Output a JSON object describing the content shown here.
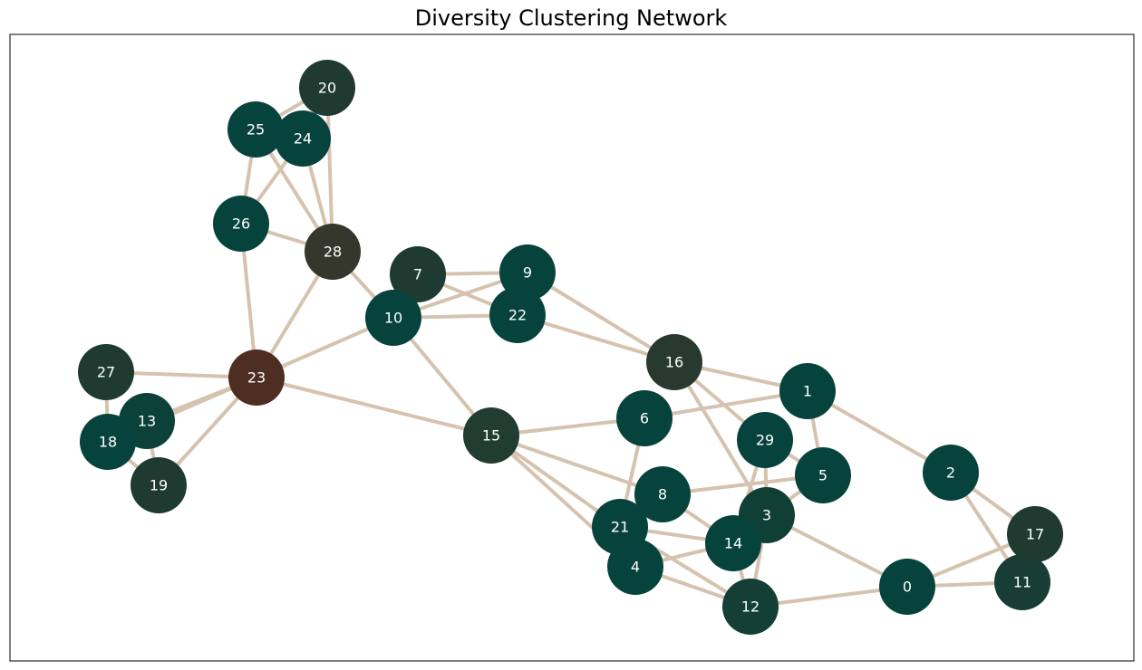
{
  "title": "Diversity Clustering Network",
  "nodes": [
    {
      "label": "0",
      "color": "#07433d"
    },
    {
      "label": "1",
      "color": "#07433d"
    },
    {
      "label": "2",
      "color": "#07433d"
    },
    {
      "label": "3",
      "color": "#103f36"
    },
    {
      "label": "4",
      "color": "#07433d"
    },
    {
      "label": "5",
      "color": "#07433d"
    },
    {
      "label": "6",
      "color": "#07433d"
    },
    {
      "label": "7",
      "color": "#1e3a31"
    },
    {
      "label": "8",
      "color": "#07433d"
    },
    {
      "label": "9",
      "color": "#07433d"
    },
    {
      "label": "10",
      "color": "#07433d"
    },
    {
      "label": "11",
      "color": "#173d34"
    },
    {
      "label": "12",
      "color": "#133f35"
    },
    {
      "label": "13",
      "color": "#0c4139"
    },
    {
      "label": "14",
      "color": "#07433d"
    },
    {
      "label": "15",
      "color": "#213d32"
    },
    {
      "label": "16",
      "color": "#283a30"
    },
    {
      "label": "17",
      "color": "#1e3a31"
    },
    {
      "label": "18",
      "color": "#07433d"
    },
    {
      "label": "19",
      "color": "#1e3a31"
    },
    {
      "label": "20",
      "color": "#1e3a31"
    },
    {
      "label": "21",
      "color": "#07433d"
    },
    {
      "label": "22",
      "color": "#07433d"
    },
    {
      "label": "23",
      "color": "#4e2e22"
    },
    {
      "label": "24",
      "color": "#07433d"
    },
    {
      "label": "25",
      "color": "#07433d"
    },
    {
      "label": "26",
      "color": "#07433d"
    },
    {
      "label": "27",
      "color": "#1e3a31"
    },
    {
      "label": "28",
      "color": "#35362c"
    },
    {
      "label": "29",
      "color": "#07433d"
    }
  ]
}
